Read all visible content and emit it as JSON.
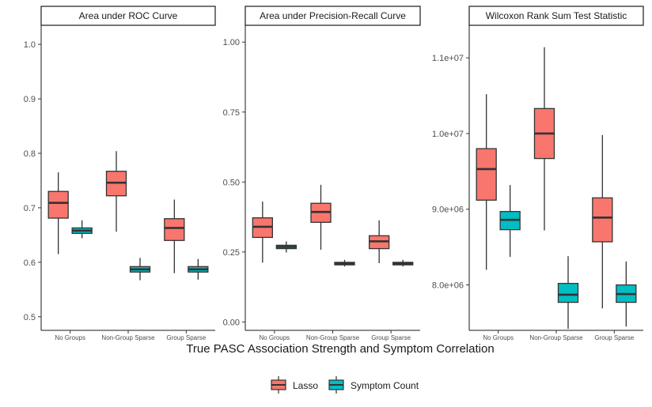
{
  "chart_data": {
    "type": "boxplot",
    "xlabel": "True PASC Association Strength and Symptom Correlation",
    "categories": [
      "No Groups",
      "Non-Group Sparse",
      "Group Sparse"
    ],
    "legend": {
      "placement": "bottom",
      "entries": [
        {
          "name": "Lasso",
          "color": "#F8766D"
        },
        {
          "name": "Symptom Count",
          "color": "#00BFC4"
        }
      ]
    },
    "panels": [
      {
        "title": "Area under ROC Curve",
        "ylim": [
          0.475,
          1.035
        ],
        "yticks": [
          0.5,
          0.6,
          0.7,
          0.8,
          0.9,
          1.0
        ],
        "ytick_labels": [
          "0.5",
          "0.6",
          "0.7",
          "0.8",
          "0.9",
          "1.0"
        ],
        "series": [
          {
            "name": "Lasso",
            "boxes": [
              {
                "category": "No Groups",
                "min": 0.615,
                "q1": 0.681,
                "median": 0.709,
                "q3": 0.73,
                "max": 0.765
              },
              {
                "category": "Non-Group Sparse",
                "min": 0.656,
                "q1": 0.722,
                "median": 0.746,
                "q3": 0.767,
                "max": 0.804
              },
              {
                "category": "Group Sparse",
                "min": 0.58,
                "q1": 0.64,
                "median": 0.663,
                "q3": 0.68,
                "max": 0.715
              }
            ]
          },
          {
            "name": "Symptom Count",
            "boxes": [
              {
                "category": "No Groups",
                "min": 0.644,
                "q1": 0.653,
                "median": 0.658,
                "q3": 0.663,
                "max": 0.677
              },
              {
                "category": "Non-Group Sparse",
                "min": 0.567,
                "q1": 0.582,
                "median": 0.587,
                "q3": 0.592,
                "max": 0.608
              },
              {
                "category": "Group Sparse",
                "min": 0.568,
                "q1": 0.582,
                "median": 0.587,
                "q3": 0.592,
                "max": 0.606
              }
            ]
          }
        ]
      },
      {
        "title": "Area under Precision-Recall Curve",
        "ylim": [
          -0.03,
          1.06
        ],
        "yticks": [
          0.0,
          0.25,
          0.5,
          0.75,
          1.0
        ],
        "ytick_labels": [
          "0.00",
          "0.25",
          "0.50",
          "0.75",
          "1.00"
        ],
        "series": [
          {
            "name": "Lasso",
            "boxes": [
              {
                "category": "No Groups",
                "min": 0.212,
                "q1": 0.302,
                "median": 0.34,
                "q3": 0.372,
                "max": 0.43
              },
              {
                "category": "Non-Group Sparse",
                "min": 0.258,
                "q1": 0.356,
                "median": 0.393,
                "q3": 0.424,
                "max": 0.49
              },
              {
                "category": "Group Sparse",
                "min": 0.21,
                "q1": 0.262,
                "median": 0.288,
                "q3": 0.308,
                "max": 0.363
              }
            ]
          },
          {
            "name": "Symptom Count",
            "boxes": [
              {
                "category": "No Groups",
                "min": 0.248,
                "q1": 0.262,
                "median": 0.268,
                "q3": 0.274,
                "max": 0.288
              },
              {
                "category": "Non-Group Sparse",
                "min": 0.198,
                "q1": 0.204,
                "median": 0.208,
                "q3": 0.213,
                "max": 0.222
              },
              {
                "category": "Group Sparse",
                "min": 0.198,
                "q1": 0.204,
                "median": 0.208,
                "q3": 0.213,
                "max": 0.222
              }
            ]
          }
        ]
      },
      {
        "title": "Wilcoxon Rank Sum Test Statistic",
        "ylim": [
          7400000,
          11430000
        ],
        "yticks": [
          8000000,
          9000000,
          10000000,
          11000000
        ],
        "ytick_labels": [
          "8.0e+06",
          "9.0e+06",
          "1.0e+07",
          "1.1e+07"
        ],
        "series": [
          {
            "name": "Lasso",
            "boxes": [
              {
                "category": "No Groups",
                "min": 8200000,
                "q1": 9120000,
                "median": 9530000,
                "q3": 9800000,
                "max": 10520000
              },
              {
                "category": "Non-Group Sparse",
                "min": 8720000,
                "q1": 9670000,
                "median": 10000000,
                "q3": 10330000,
                "max": 11140000
              },
              {
                "category": "Group Sparse",
                "min": 7690000,
                "q1": 8570000,
                "median": 8890000,
                "q3": 9150000,
                "max": 9980000
              }
            ]
          },
          {
            "name": "Symptom Count",
            "boxes": [
              {
                "category": "No Groups",
                "min": 8370000,
                "q1": 8730000,
                "median": 8860000,
                "q3": 8970000,
                "max": 9320000
              },
              {
                "category": "Non-Group Sparse",
                "min": 7420000,
                "q1": 7770000,
                "median": 7870000,
                "q3": 8020000,
                "max": 8380000
              },
              {
                "category": "Group Sparse",
                "min": 7450000,
                "q1": 7770000,
                "median": 7880000,
                "q3": 8000000,
                "max": 8310000
              }
            ]
          }
        ]
      }
    ]
  }
}
